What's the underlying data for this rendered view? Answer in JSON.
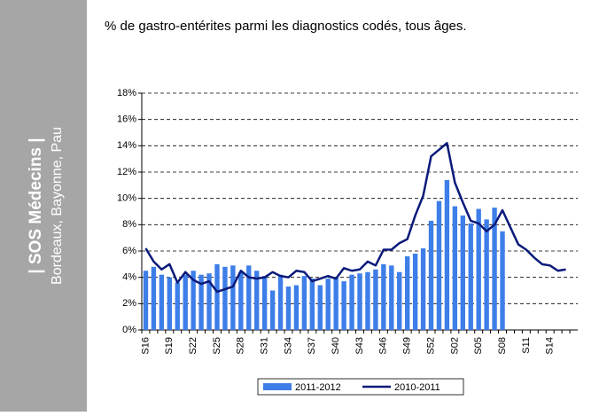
{
  "sidebar": {
    "title": "| SOS Médecins |",
    "subtitle": "Bordeaux, Bayonne, Pau"
  },
  "chart_data": {
    "type": "bar-line",
    "title": "% de gastro-entérites parmi les diagnostics codés, tous âges.",
    "categories": [
      "S16",
      null,
      null,
      "S19",
      null,
      null,
      "S22",
      null,
      null,
      "S25",
      null,
      null,
      "S28",
      null,
      null,
      "S31",
      null,
      null,
      "S34",
      null,
      null,
      "S37",
      null,
      null,
      "S40",
      null,
      null,
      "S43",
      null,
      null,
      "S46",
      null,
      null,
      "S49",
      null,
      null,
      "S52",
      null,
      null,
      "S02",
      null,
      null,
      "S05",
      null,
      null,
      "S08",
      null,
      null,
      "S11",
      null,
      null,
      "S14",
      null,
      null,
      null
    ],
    "series": [
      {
        "name": "2011-2012",
        "kind": "bar",
        "color": "#3d7ee8",
        "values": [
          4.5,
          4.8,
          4.2,
          4.0,
          3.6,
          4.2,
          4.5,
          4.2,
          4.3,
          5.0,
          4.8,
          4.9,
          4.4,
          4.9,
          4.5,
          4.1,
          3.0,
          4.2,
          3.3,
          3.4,
          4.1,
          3.9,
          3.4,
          3.9,
          4.0,
          3.7,
          4.2,
          4.3,
          4.4,
          4.6,
          5.0,
          4.9,
          4.4,
          5.6,
          5.8,
          6.2,
          8.3,
          9.8,
          11.4,
          9.4,
          8.7,
          8.1,
          9.2,
          8.4,
          9.3,
          7.5,
          null,
          null,
          null,
          null,
          null,
          null,
          null,
          null,
          null
        ]
      },
      {
        "name": "2010-2011",
        "kind": "line",
        "color": "#0a1a7a",
        "values": [
          6.2,
          5.2,
          4.6,
          5.0,
          3.6,
          4.4,
          3.8,
          3.5,
          3.7,
          2.9,
          3.1,
          3.3,
          4.5,
          4.0,
          3.9,
          4.0,
          4.4,
          4.1,
          4.0,
          4.5,
          4.4,
          3.7,
          3.9,
          4.1,
          3.9,
          4.7,
          4.5,
          4.6,
          5.2,
          4.9,
          6.1,
          6.1,
          6.6,
          6.9,
          8.7,
          10.2,
          13.2,
          13.7,
          14.2,
          11.2,
          9.7,
          8.3,
          8.1,
          7.5,
          8.0,
          9.1,
          7.8,
          6.5,
          6.1,
          5.5,
          5.0,
          4.9,
          4.5,
          4.6,
          null
        ]
      }
    ],
    "ylim": [
      0,
      18
    ],
    "yticks": [
      {
        "value": 0,
        "label": "0%"
      },
      {
        "value": 2,
        "label": "2%"
      },
      {
        "value": 4,
        "label": "4%"
      },
      {
        "value": 6,
        "label": "6%"
      },
      {
        "value": 8,
        "label": "8%"
      },
      {
        "value": 10,
        "label": "10%"
      },
      {
        "value": 12,
        "label": "12%"
      },
      {
        "value": 14,
        "label": "14%"
      },
      {
        "value": 16,
        "label": "16%"
      },
      {
        "value": 18,
        "label": "18%"
      }
    ],
    "grid": true,
    "legend": "bottom"
  }
}
